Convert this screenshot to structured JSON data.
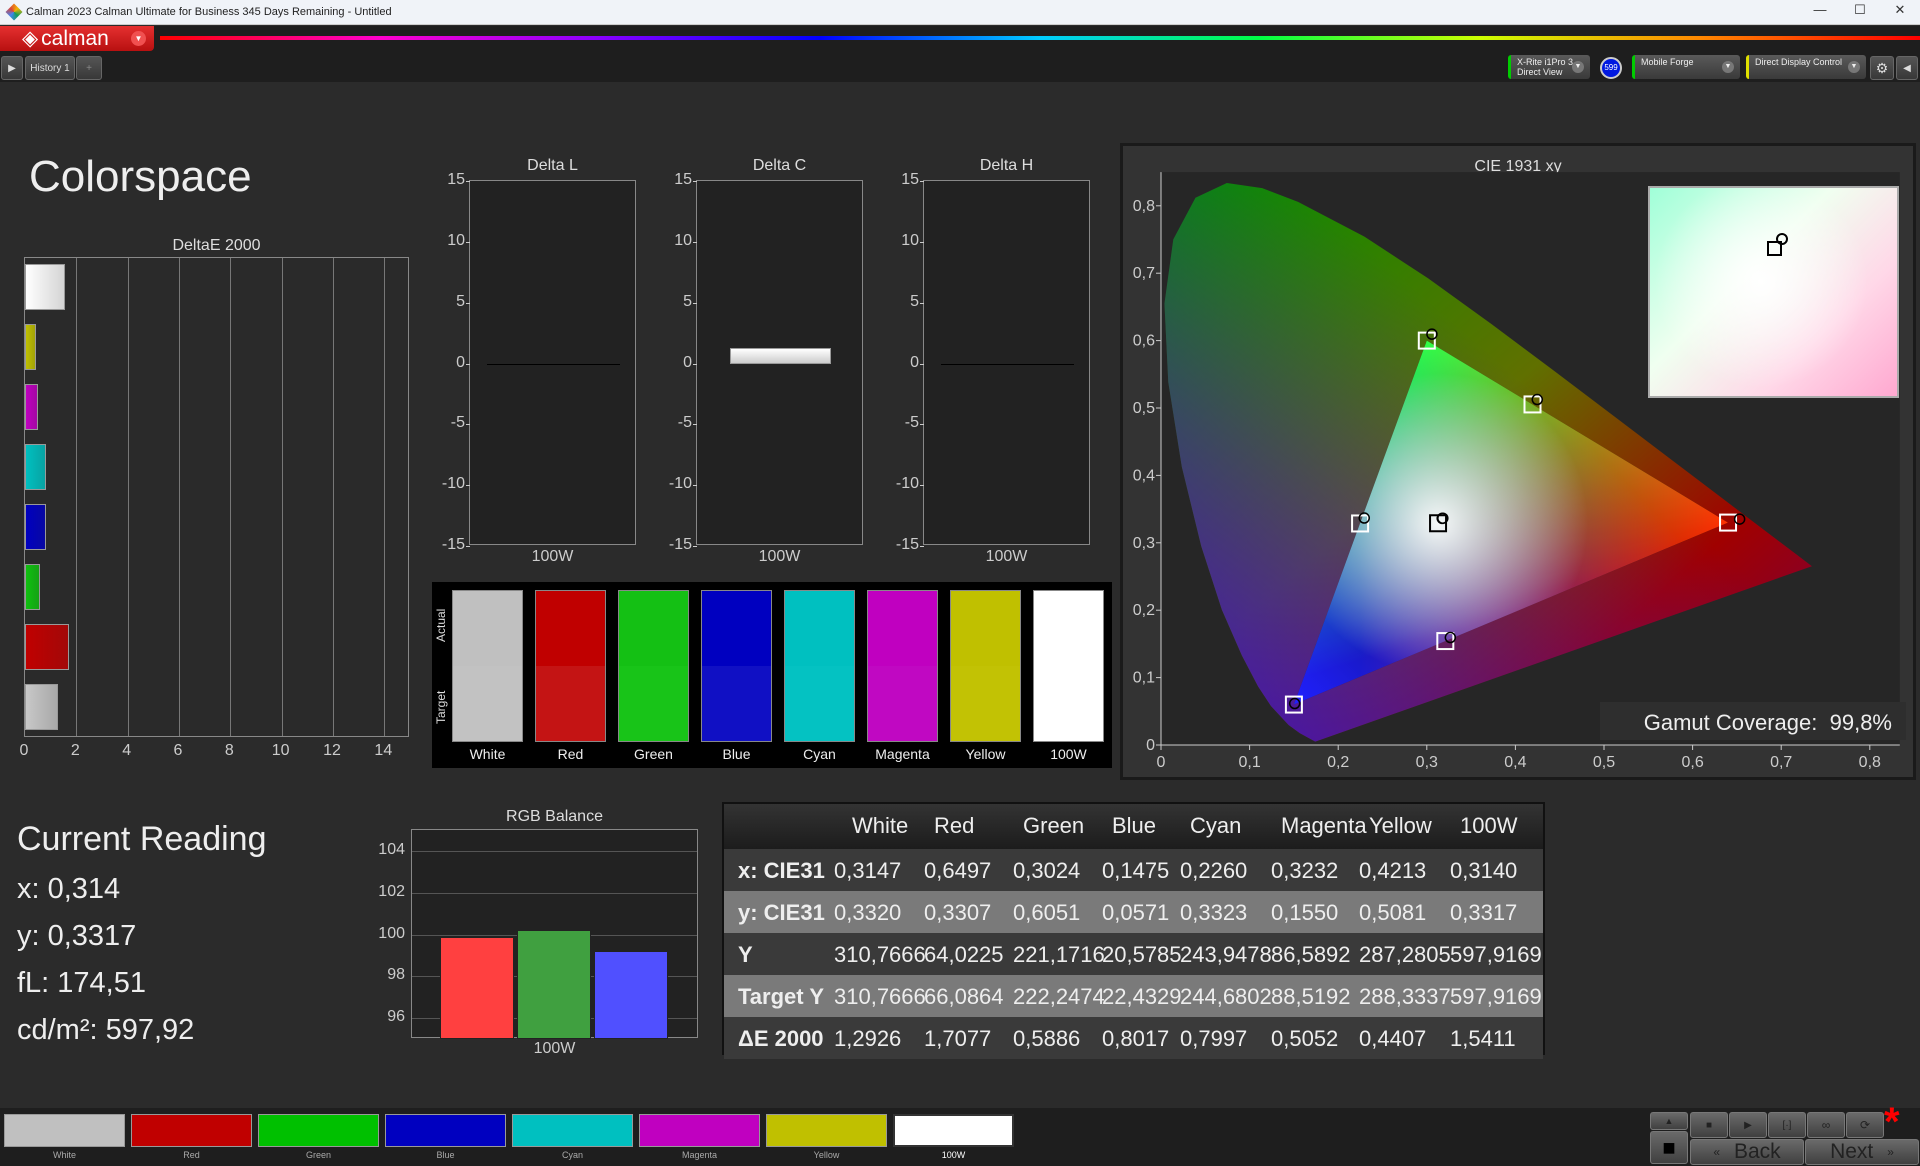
{
  "window": {
    "title": "Calman 2023 Calman Ultimate for Business 345 Days Remaining  - Untitled",
    "minimize": "—",
    "maximize": "☐",
    "close": "✕"
  },
  "brand": {
    "name": "calman",
    "menu_icon": "chevron-down-icon"
  },
  "tabs": {
    "history": "History 1",
    "add": "+"
  },
  "devices": [
    {
      "line1": "X-Rite i1Pro 3",
      "line2": "Direct View",
      "color": "#00cc00",
      "badge": "599"
    },
    {
      "line1": "Mobile Forge",
      "line2": "",
      "color": "#00cc00"
    },
    {
      "line1": "Direct Display Control",
      "line2": "",
      "color": "#e0e000"
    }
  ],
  "page": {
    "title": "Colorspace"
  },
  "deltae_chart": {
    "type": "bar",
    "orientation": "horizontal",
    "title": "DeltaE 2000",
    "categories": [
      "100W",
      "Yellow",
      "Magenta",
      "Cyan",
      "Blue",
      "Green",
      "Red",
      "White"
    ],
    "values": [
      1.5411,
      0.4407,
      0.5052,
      0.7997,
      0.8017,
      0.5886,
      1.7077,
      1.2926
    ],
    "colors": [
      "#ffffff",
      "#c0c000",
      "#c000c0",
      "#00c0c0",
      "#0000c0",
      "#10c010",
      "#c00000",
      "#c8c8c8"
    ],
    "xlim": [
      0,
      15
    ],
    "xticks": [
      "0",
      "2",
      "4",
      "6",
      "8",
      "10",
      "12",
      "14"
    ]
  },
  "delta_charts": [
    {
      "title": "Delta L",
      "category": "100W",
      "value": 0
    },
    {
      "title": "Delta C",
      "category": "100W",
      "value": 1.3
    },
    {
      "title": "Delta H",
      "category": "100W",
      "value": 0
    }
  ],
  "delta_yticks": [
    "15",
    "10",
    "5",
    "0",
    "-5",
    "-10",
    "-15"
  ],
  "swatches": {
    "actual_label": "Actual",
    "target_label": "Target",
    "items": [
      {
        "label": "White",
        "actual": "#c0c0c0",
        "target": "#c2c2c2"
      },
      {
        "label": "Red",
        "actual": "#c00000",
        "target": "#c41414"
      },
      {
        "label": "Green",
        "actual": "#14c014",
        "target": "#18c418"
      },
      {
        "label": "Blue",
        "actual": "#0000c0",
        "target": "#1010c4"
      },
      {
        "label": "Cyan",
        "actual": "#00c0c0",
        "target": "#04c2c2"
      },
      {
        "label": "Magenta",
        "actual": "#c000c0",
        "target": "#c008c2"
      },
      {
        "label": "Yellow",
        "actual": "#c0c000",
        "target": "#c2c204"
      },
      {
        "label": "100W",
        "actual": "#ffffff",
        "target": "#ffffff"
      }
    ]
  },
  "cie_chart": {
    "type": "scatter",
    "title": "CIE 1931 xy",
    "xlim": [
      0,
      0.8
    ],
    "ylim": [
      0,
      0.85
    ],
    "xticks": [
      "0",
      "0,1",
      "0,2",
      "0,3",
      "0,4",
      "0,5",
      "0,6",
      "0,7",
      "0,8"
    ],
    "yticks": [
      "0",
      "0,1",
      "0,2",
      "0,3",
      "0,4",
      "0,5",
      "0,6",
      "0,7",
      "0,8"
    ],
    "measured": [
      {
        "name": "White",
        "x": 0.3147,
        "y": 0.332
      },
      {
        "name": "Red",
        "x": 0.6497,
        "y": 0.3307
      },
      {
        "name": "Green",
        "x": 0.3024,
        "y": 0.6051
      },
      {
        "name": "Blue",
        "x": 0.1475,
        "y": 0.0571
      },
      {
        "name": "Cyan",
        "x": 0.226,
        "y": 0.3323
      },
      {
        "name": "Magenta",
        "x": 0.3232,
        "y": 0.155
      },
      {
        "name": "Yellow",
        "x": 0.4213,
        "y": 0.5081
      },
      {
        "name": "100W",
        "x": 0.314,
        "y": 0.3317
      }
    ],
    "targets": [
      {
        "name": "White",
        "x": 0.3127,
        "y": 0.329
      },
      {
        "name": "Red",
        "x": 0.64,
        "y": 0.33
      },
      {
        "name": "Green",
        "x": 0.3,
        "y": 0.6
      },
      {
        "name": "Blue",
        "x": 0.15,
        "y": 0.06
      },
      {
        "name": "Cyan",
        "x": 0.2247,
        "y": 0.3287
      },
      {
        "name": "Magenta",
        "x": 0.3209,
        "y": 0.1542
      },
      {
        "name": "Yellow",
        "x": 0.4193,
        "y": 0.5053
      }
    ],
    "gamut_label": "Gamut Coverage:",
    "gamut_value": "99,8%"
  },
  "reading": {
    "title": "Current Reading",
    "x": "x: 0,314",
    "y": "y: 0,3317",
    "fl": "fL: 174,51",
    "cdm2": "cd/m²: 597,92"
  },
  "rgb_chart": {
    "type": "bar",
    "title": "RGB Balance",
    "category": "100W",
    "values": [
      99.9,
      100.2,
      99.2
    ],
    "colors": [
      "#ff4040",
      "#40a040",
      "#5050ff"
    ],
    "ylim": [
      95,
      105
    ],
    "yticks": [
      "104",
      "102",
      "100",
      "98",
      "96"
    ]
  },
  "table": {
    "headers": [
      "",
      "White",
      "Red",
      "Green",
      "Blue",
      "Cyan",
      "Magenta",
      "Yellow",
      "100W"
    ],
    "rows": [
      [
        "x: CIE31",
        "0,3147",
        "0,6497",
        "0,3024",
        "0,1475",
        "0,2260",
        "0,3232",
        "0,4213",
        "0,3140"
      ],
      [
        "y: CIE31",
        "0,3320",
        "0,3307",
        "0,6051",
        "0,0571",
        "0,3323",
        "0,1550",
        "0,5081",
        "0,3317"
      ],
      [
        "Y",
        "310,7666",
        "64,0225",
        "221,1716",
        "20,5785",
        "243,9478",
        "86,5892",
        "287,2805",
        "597,9169"
      ],
      [
        "Target Y",
        "310,7666",
        "66,0864",
        "222,2474",
        "22,4329",
        "244,6802",
        "88,5192",
        "288,3337",
        "597,9169"
      ],
      [
        "ΔE 2000",
        "1,2926",
        "1,7077",
        "0,5886",
        "0,8017",
        "0,7997",
        "0,5052",
        "0,4407",
        "1,5411"
      ]
    ]
  },
  "bottom_swatches": [
    {
      "label": "White",
      "color": "#c0c0c0"
    },
    {
      "label": "Red",
      "color": "#c00000"
    },
    {
      "label": "Green",
      "color": "#00c000"
    },
    {
      "label": "Blue",
      "color": "#0000c0"
    },
    {
      "label": "Cyan",
      "color": "#00c0c0"
    },
    {
      "label": "Magenta",
      "color": "#c000c0"
    },
    {
      "label": "Yellow",
      "color": "#c0c000"
    },
    {
      "label": "100W",
      "color": "#ffffff",
      "selected": true
    }
  ],
  "controls": {
    "back": "Back",
    "next": "Next",
    "back_icon": "«",
    "next_icon": "»",
    "stop": "■",
    "play": "▶",
    "bracket": "[·]",
    "loop": "∞",
    "refresh": "⟳",
    "up": "▲",
    "asterisk": "*"
  }
}
